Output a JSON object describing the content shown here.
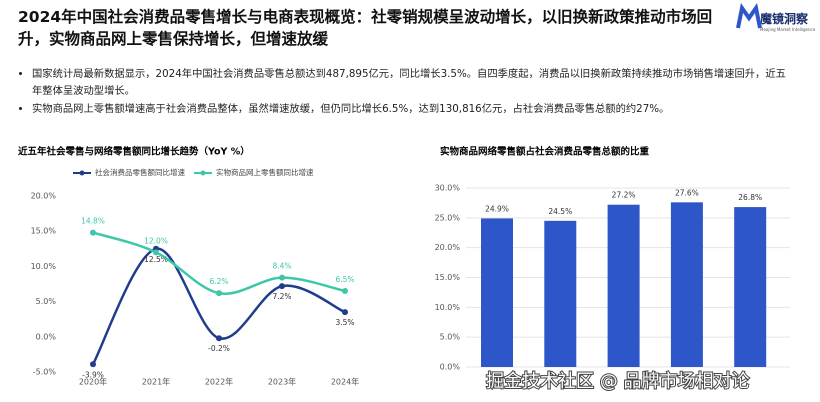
{
  "header": {
    "title": "2024年中国社会消费品零售增长与电商表现概览：社零销规模呈波动增长，以旧换新政策推动市场回升，实物商品网上零售保持增长，但增速放缓",
    "logo": "魔镜洞察",
    "logo_sub": "Moojing Market Intelligence"
  },
  "bullets": [
    "国家统计局最新数据显示，2024年中国社会消费品零售总额达到487,895亿元，同比增长3.5%。自四季度起，消费品以旧换新政策持续推动市场销售增速回升，近五年整体呈波动型增长。",
    "实物商品网上零售额增速高于社会消费品整体，虽然增速放缓，但仍同比增长6.5%，达到130,816亿元，占社会消费品零售总额的约27%。"
  ],
  "watermark": "掘金技术社区 @ 品牌市场相对论",
  "chart_data": [
    {
      "type": "line",
      "title": "近五年社会零售与网络零售额同比增长趋势（YoY %）",
      "categories": [
        "2020年",
        "2021年",
        "2022年",
        "2023年",
        "2024年"
      ],
      "series": [
        {
          "name": "社会消费品零售额同比增速",
          "color": "#1f3d8c",
          "values": [
            -3.9,
            12.5,
            -0.2,
            7.2,
            3.5
          ],
          "value_labels": [
            "-3.9%",
            "12.5%",
            "-0.2%",
            "7.2%",
            "3.5%"
          ]
        },
        {
          "name": "实物商品网上零售额同比增速",
          "color": "#3cc8a8",
          "values": [
            14.8,
            12.0,
            6.2,
            8.4,
            6.5
          ],
          "value_labels": [
            "14.8%",
            "12.0%",
            "6.2%",
            "8.4%",
            "6.5%"
          ]
        }
      ],
      "ylim": [
        -5,
        20
      ],
      "yticks": [
        {
          "value": -5,
          "label": "-5.0%"
        },
        {
          "value": 0,
          "label": "0.0%"
        },
        {
          "value": 5,
          "label": "5.0%"
        },
        {
          "value": 10,
          "label": "10.0%"
        },
        {
          "value": 15,
          "label": "15.0%"
        },
        {
          "value": 20,
          "label": "20.0%"
        }
      ],
      "grid": false
    },
    {
      "type": "bar",
      "title": "实物商品网络零售额占社会消费品零售总额的比重",
      "values": [
        24.9,
        24.5,
        27.2,
        27.6,
        26.8
      ],
      "value_labels": [
        "24.9%",
        "24.5%",
        "27.2%",
        "27.6%",
        "26.8%"
      ],
      "color": "#2d56c8",
      "ylim": [
        0,
        30
      ],
      "yticks": [
        {
          "value": 0,
          "label": "0.0%"
        },
        {
          "value": 5,
          "label": "5.0%"
        },
        {
          "value": 10,
          "label": "10.0%"
        },
        {
          "value": 15,
          "label": "15.0%"
        },
        {
          "value": 20,
          "label": "20.0%"
        },
        {
          "value": 25,
          "label": "25.0%"
        },
        {
          "value": 30,
          "label": "30.0%"
        }
      ],
      "grid": true
    }
  ]
}
